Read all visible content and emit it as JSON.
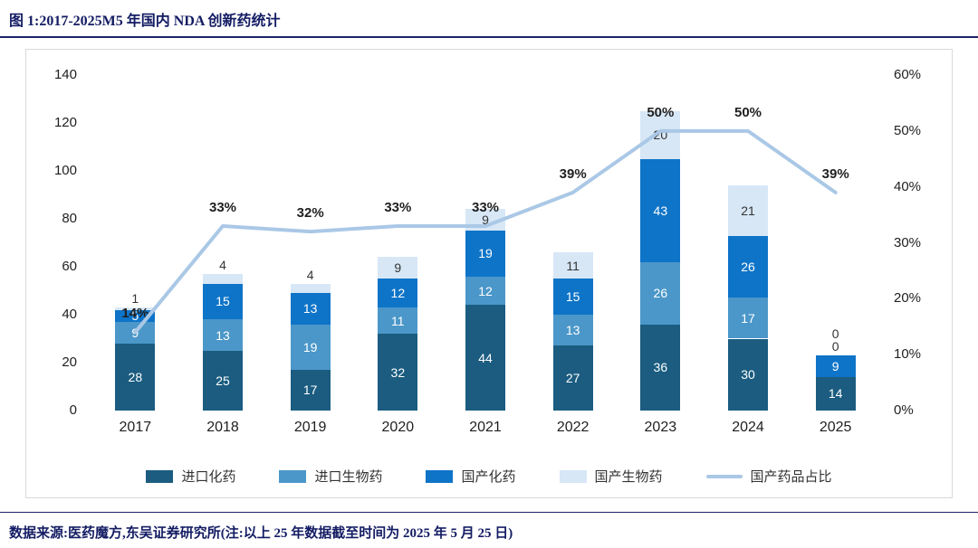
{
  "title": "图 1:2017-2025M5 年国内 NDA 创新药统计",
  "footer": "数据来源:医药魔方,东吴证券研究所(注:以上 25 年数据截至时间为 2025 年 5 月 25 日)",
  "chart_data": {
    "type": "bar",
    "stacked": true,
    "title": "2017-2025M5 年国内 NDA 创新药统计",
    "categories": [
      "2017",
      "2018",
      "2019",
      "2020",
      "2021",
      "2022",
      "2023",
      "2024",
      "2025"
    ],
    "series": [
      {
        "name": "进口化药",
        "color": "#1b5c80",
        "values": [
          28,
          25,
          17,
          32,
          44,
          27,
          36,
          30,
          14
        ]
      },
      {
        "name": "进口生物药",
        "color": "#4b97c9",
        "values": [
          9,
          13,
          19,
          11,
          12,
          13,
          26,
          17,
          0
        ]
      },
      {
        "name": "国产化药",
        "color": "#0e74c8",
        "values": [
          5,
          15,
          13,
          12,
          19,
          15,
          43,
          26,
          9
        ]
      },
      {
        "name": "国产生物药",
        "color": "#d7e7f6",
        "values": [
          1,
          4,
          4,
          9,
          9,
          11,
          20,
          21,
          0
        ]
      }
    ],
    "line_series": {
      "name": "国产药品占比",
      "color": "#aac8e6",
      "unit": "%",
      "values": [
        14,
        33,
        32,
        33,
        33,
        39,
        50,
        50,
        39
      ],
      "labels": [
        "14%",
        "33%",
        "32%",
        "33%",
        "33%",
        "39%",
        "50%",
        "50%",
        "39%"
      ]
    },
    "left_axis": {
      "min": 0,
      "max": 140,
      "step": 20,
      "ticks": [
        "0",
        "20",
        "40",
        "60",
        "80",
        "100",
        "120",
        "140"
      ]
    },
    "right_axis": {
      "min": 0,
      "max": 60,
      "step": 10,
      "ticks": [
        "0%",
        "10%",
        "20%",
        "30%",
        "40%",
        "50%",
        "60%"
      ]
    },
    "grid": false,
    "legend_position": "bottom"
  }
}
